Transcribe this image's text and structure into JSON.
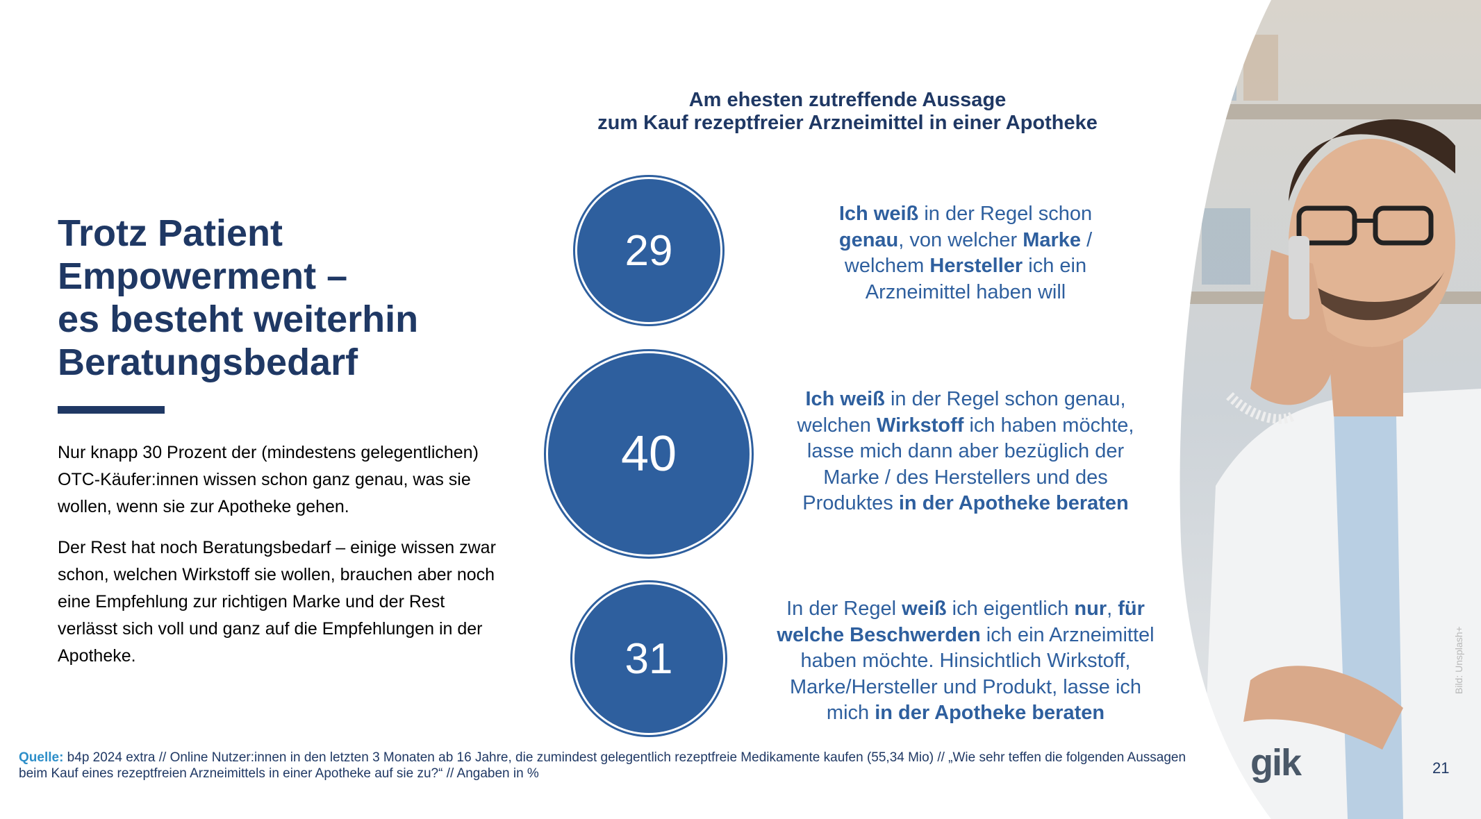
{
  "title_lines": [
    "Trotz Patient",
    "Empowerment –",
    "es besteht weiterhin",
    "Beratungsbedarf"
  ],
  "paragraphs": [
    "Nur knapp 30 Prozent der (mindestens gelegentlichen) OTC-Käufer:innen wissen schon ganz genau, was sie wollen, wenn sie zur Apotheke gehen.",
    "Der Rest hat noch Beratungsbedarf – einige wissen zwar schon, welchen Wirkstoff sie wollen, brauchen aber noch eine Empfehlung zur richtigen Marke und der Rest verlässt sich voll und ganz auf die Empfehlungen in der Apotheke."
  ],
  "chart_title_lines": [
    "Am ehesten zutreffende Aussage",
    "zum Kauf rezeptfreier Arzneimittel in einer Apotheke"
  ],
  "items": [
    {
      "value": "29",
      "lines": [
        [
          {
            "b": true,
            "t": "Ich weiß"
          },
          {
            "b": false,
            "t": " in der Regel schon"
          }
        ],
        [
          {
            "b": true,
            "t": "genau"
          },
          {
            "b": false,
            "t": ", von welcher "
          },
          {
            "b": true,
            "t": "Marke"
          },
          {
            "b": false,
            "t": " /"
          }
        ],
        [
          {
            "b": false,
            "t": "welchem "
          },
          {
            "b": true,
            "t": "Hersteller"
          },
          {
            "b": false,
            "t": " ich ein"
          }
        ],
        [
          {
            "b": false,
            "t": "Arzneimittel haben will"
          }
        ]
      ]
    },
    {
      "value": "40",
      "lines": [
        [
          {
            "b": true,
            "t": "Ich weiß"
          },
          {
            "b": false,
            "t": " in der Regel schon genau,"
          }
        ],
        [
          {
            "b": false,
            "t": "welchen "
          },
          {
            "b": true,
            "t": "Wirkstoff"
          },
          {
            "b": false,
            "t": " ich haben möchte,"
          }
        ],
        [
          {
            "b": false,
            "t": "lasse mich dann aber bezüglich der"
          }
        ],
        [
          {
            "b": false,
            "t": "Marke / des Herstellers und des"
          }
        ],
        [
          {
            "b": false,
            "t": "Produktes "
          },
          {
            "b": true,
            "t": "in der Apotheke beraten"
          }
        ]
      ]
    },
    {
      "value": "31",
      "lines": [
        [
          {
            "b": false,
            "t": "In der Regel "
          },
          {
            "b": true,
            "t": "weiß"
          },
          {
            "b": false,
            "t": " ich eigentlich "
          },
          {
            "b": true,
            "t": "nur"
          },
          {
            "b": false,
            "t": ", "
          },
          {
            "b": true,
            "t": "für"
          }
        ],
        [
          {
            "b": true,
            "t": "welche Beschwerden"
          },
          {
            "b": false,
            "t": " ich ein Arzneimittel"
          }
        ],
        [
          {
            "b": false,
            "t": "haben möchte. Hinsichtlich Wirkstoff,"
          }
        ],
        [
          {
            "b": false,
            "t": "Marke/Hersteller und Produkt, lasse ich"
          }
        ],
        [
          {
            "b": false,
            "t": "mich "
          },
          {
            "b": true,
            "t": "in der Apotheke beraten"
          }
        ]
      ]
    }
  ],
  "photo_credit": "Bild: Unsplash+",
  "source_label": "Quelle:",
  "source_text": " b4p 2024 extra // Online Nutzer:innen in den letzten 3 Monaten ab 16 Jahre, die zumindest gelegentlich rezeptfreie Medikamente kaufen (55,34 Mio) // „Wie sehr teffen die folgenden Aussagen beim Kauf eines rezeptfreien Arzneimittels in einer Apotheke auf sie zu?“ // Angaben in %",
  "logo_text": "gik",
  "page_number": "21",
  "colors": {
    "dark_navy": "#1f3864",
    "circle_blue": "#2e5f9e",
    "source_label": "#2e8fc9"
  }
}
